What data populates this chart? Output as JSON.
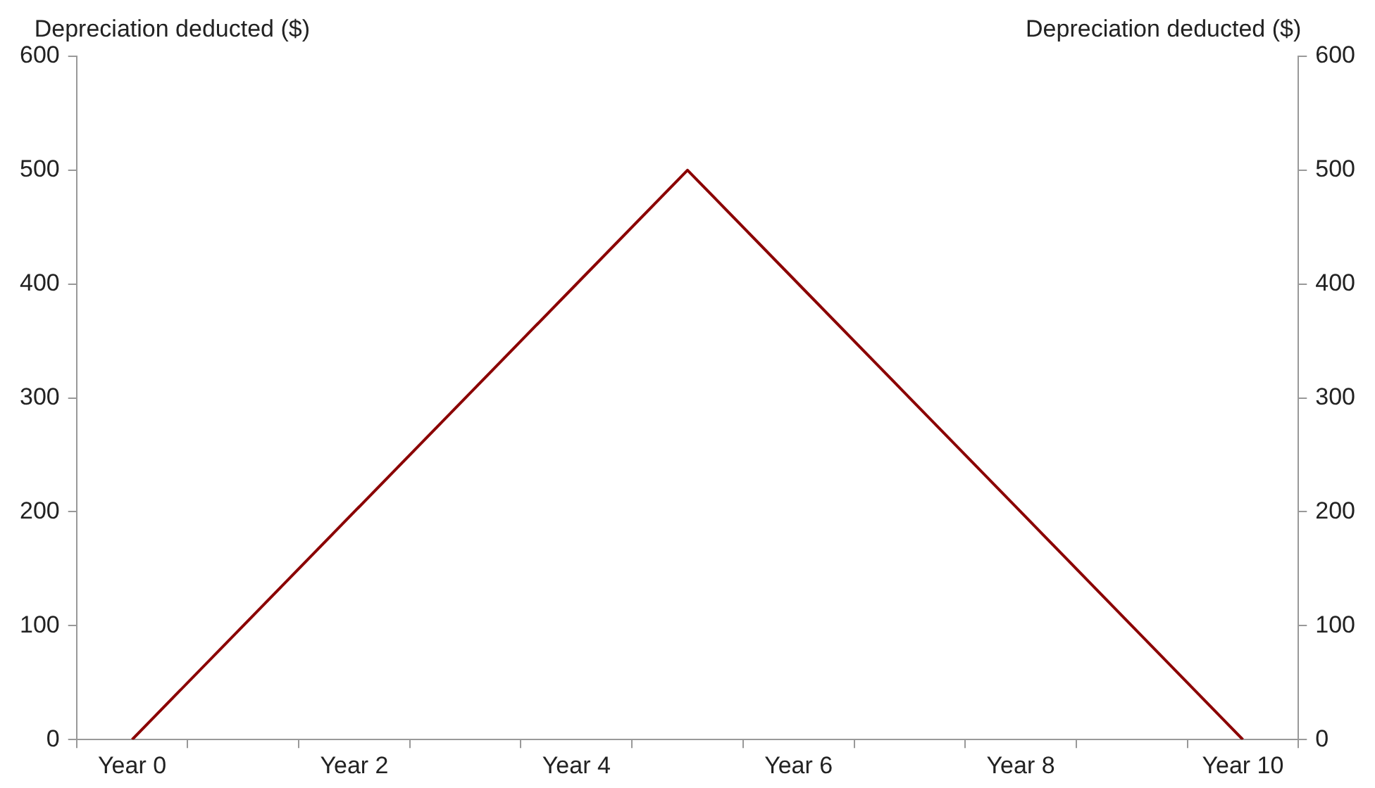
{
  "chart_data": {
    "type": "line",
    "ylabel": "Depreciation deducted ($)",
    "y2label": "Depreciation deducted ($)",
    "categories": [
      "Year 0",
      null,
      "Year 2",
      null,
      "Year 4",
      null,
      "Year 6",
      null,
      "Year 8",
      null,
      "Year 10"
    ],
    "series": [
      {
        "color": "#8b0000",
        "values": [
          0,
          100,
          200,
          300,
          400,
          500,
          400,
          300,
          200,
          100,
          0
        ]
      }
    ],
    "ylim": [
      0,
      600
    ],
    "yticks": [
      0,
      100,
      200,
      300,
      400,
      500,
      600
    ],
    "y2lim": [
      0,
      600
    ],
    "y2ticks": [
      0,
      100,
      200,
      300,
      400,
      500,
      600
    ],
    "grid": false,
    "legend": false,
    "marker": "none",
    "line_style": "solid"
  }
}
